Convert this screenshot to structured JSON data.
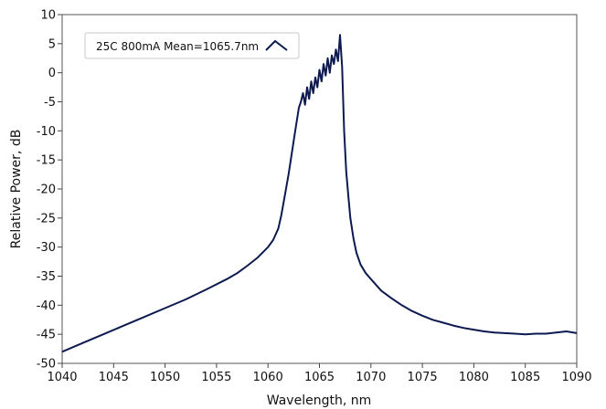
{
  "chart_data": {
    "type": "line",
    "title": "",
    "xlabel": "Wavelength, nm",
    "ylabel": "Relative Power, dB",
    "xlim": [
      1040,
      1090
    ],
    "ylim": [
      -50,
      10
    ],
    "x_ticks": [
      1040,
      1045,
      1050,
      1055,
      1060,
      1065,
      1070,
      1075,
      1080,
      1085,
      1090
    ],
    "y_ticks": [
      10,
      5,
      0,
      -5,
      -10,
      -15,
      -20,
      -25,
      -30,
      -35,
      -40,
      -45,
      -50
    ],
    "grid": false,
    "legend_position": "top-left",
    "line_color": "#0d1a4f",
    "series": [
      {
        "name": "25C 800mA Mean=1065.7nm",
        "x": [
          1040,
          1042,
          1044,
          1046,
          1048,
          1050,
          1052,
          1054,
          1056,
          1057,
          1058,
          1059,
          1060,
          1060.5,
          1061,
          1061.3,
          1061.6,
          1062,
          1062.3,
          1062.6,
          1063,
          1063.2,
          1063.4,
          1063.6,
          1063.8,
          1064,
          1064.2,
          1064.4,
          1064.6,
          1064.8,
          1065,
          1065.2,
          1065.4,
          1065.6,
          1065.8,
          1066,
          1066.2,
          1066.4,
          1066.6,
          1066.8,
          1067,
          1067.2,
          1067.4,
          1067.6,
          1067.8,
          1068,
          1068.3,
          1068.6,
          1069,
          1069.5,
          1070,
          1071,
          1072,
          1073,
          1074,
          1075,
          1076,
          1077,
          1078,
          1079,
          1080,
          1081,
          1082,
          1083,
          1084,
          1085,
          1086,
          1087,
          1088,
          1089,
          1090
        ],
        "values": [
          -48,
          -46.5,
          -45,
          -43.5,
          -42,
          -40.5,
          -39,
          -37.3,
          -35.5,
          -34.5,
          -33.2,
          -31.8,
          -30,
          -28.8,
          -26.8,
          -24.5,
          -21.5,
          -17.5,
          -14,
          -10.5,
          -6,
          -5,
          -3.5,
          -5.5,
          -2.5,
          -4.5,
          -1.5,
          -3.5,
          -0.8,
          -2.5,
          0.5,
          -1.5,
          1.5,
          -0.5,
          2.5,
          0,
          3,
          1.5,
          4,
          2,
          6.5,
          1,
          -10,
          -17,
          -21,
          -25,
          -28.5,
          -31,
          -33,
          -34.5,
          -35.5,
          -37.5,
          -38.8,
          -40,
          -41,
          -41.8,
          -42.5,
          -43,
          -43.5,
          -43.9,
          -44.2,
          -44.5,
          -44.7,
          -44.8,
          -44.9,
          -45,
          -44.9,
          -44.9,
          -44.7,
          -44.5,
          -44.8
        ]
      }
    ]
  }
}
